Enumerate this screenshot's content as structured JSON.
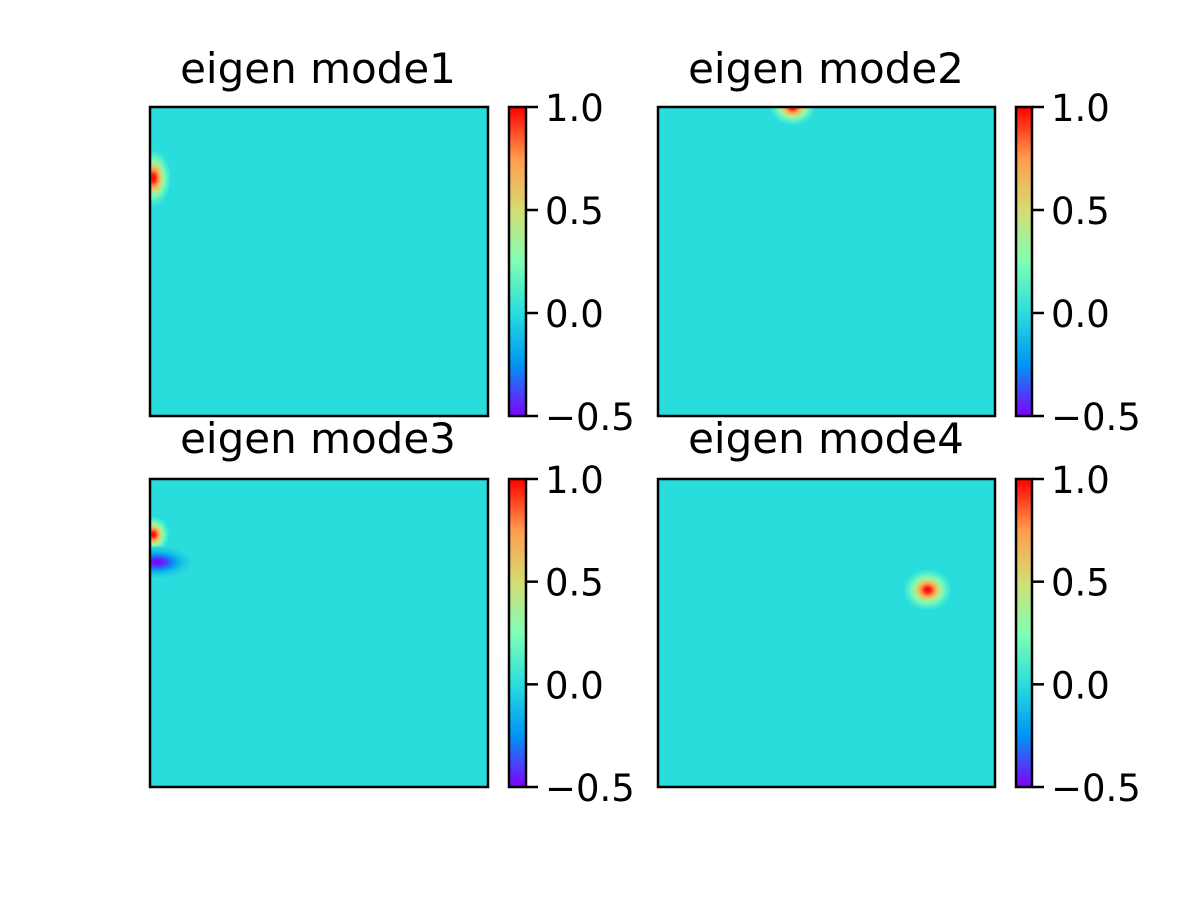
{
  "chart_data": [
    {
      "type": "heatmap",
      "title": "eigen mode1",
      "colormap": "rainbow",
      "background_value": 0.0,
      "colorbar": {
        "min": -0.5,
        "max": 1.0,
        "ticks": [
          "1.0",
          "0.5",
          "0.0",
          "−0.5"
        ]
      },
      "axes_ticks_visible": false,
      "features": [
        {
          "x": 0.01,
          "y": 0.23,
          "sx": 0.022,
          "sy": 0.038,
          "value": 1.0
        }
      ]
    },
    {
      "type": "heatmap",
      "title": "eigen mode2",
      "colormap": "rainbow",
      "background_value": 0.0,
      "colorbar": {
        "min": -0.5,
        "max": 1.0,
        "ticks": [
          "1.0",
          "0.5",
          "0.0",
          "−0.5"
        ]
      },
      "axes_ticks_visible": false,
      "features": [
        {
          "x": 0.4,
          "y": 0.0,
          "sx": 0.028,
          "sy": 0.025,
          "value": 1.0
        }
      ]
    },
    {
      "type": "heatmap",
      "title": "eigen mode3",
      "colormap": "rainbow",
      "background_value": 0.0,
      "colorbar": {
        "min": -0.5,
        "max": 1.0,
        "ticks": [
          "1.0",
          "0.5",
          "0.0",
          "−0.5"
        ]
      },
      "axes_ticks_visible": false,
      "features": [
        {
          "x": 0.01,
          "y": 0.18,
          "sx": 0.02,
          "sy": 0.025,
          "value": 1.0
        },
        {
          "x": 0.02,
          "y": 0.27,
          "sx": 0.045,
          "sy": 0.022,
          "value": -0.5
        }
      ]
    },
    {
      "type": "heatmap",
      "title": "eigen mode4",
      "colormap": "rainbow",
      "background_value": 0.0,
      "colorbar": {
        "min": -0.5,
        "max": 1.0,
        "ticks": [
          "1.0",
          "0.5",
          "0.0",
          "−0.5"
        ]
      },
      "axes_ticks_visible": false,
      "features": [
        {
          "x": 0.8,
          "y": 0.36,
          "sx": 0.03,
          "sy": 0.028,
          "value": 1.0
        }
      ]
    }
  ],
  "colors": {
    "rainbow_stops": [
      "#8000ff",
      "#0095f2",
      "#2adddd",
      "#80ffb4",
      "#d5dc73",
      "#ff9d4d",
      "#ff0000"
    ],
    "frame": "#000000"
  }
}
